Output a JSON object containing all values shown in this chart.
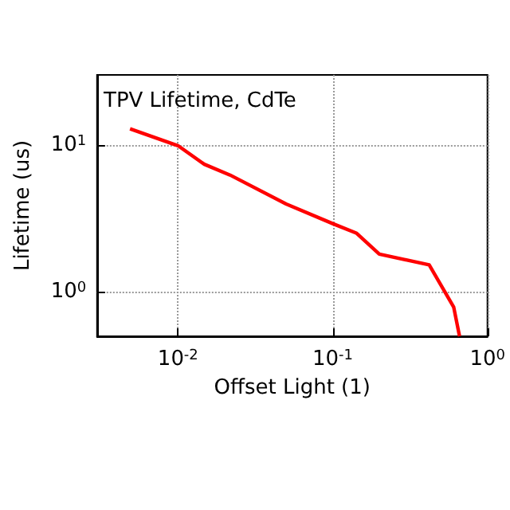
{
  "chart_data": {
    "type": "line",
    "title": "TPV Lifetime, CdTe",
    "xlabel": "Offset Light (1)",
    "ylabel": "Lifetime (us)",
    "x": [
      0.0049,
      0.01,
      0.0148,
      0.0217,
      0.05,
      0.1,
      0.142,
      0.2,
      0.42,
      0.605,
      0.66
    ],
    "series": [
      {
        "color": "#ff0000",
        "values": [
          12.9,
          9.9,
          7.4,
          6.25,
          3.97,
          2.92,
          2.52,
          1.81,
          1.53,
          0.79,
          0.5
        ]
      }
    ],
    "log": "xy",
    "xlim": [
      0.003,
      1
    ],
    "ylim": [
      0.5,
      30
    ],
    "xticks": [
      {
        "value": 0.01,
        "label": "10$^{-2}$"
      },
      {
        "value": 0.1,
        "label": "10$^{-1}$"
      },
      {
        "value": 1,
        "label": "10$^{0}$"
      }
    ],
    "yticks": [
      {
        "value": 1,
        "label": "10$^{0}$"
      },
      {
        "value": 10,
        "label": "10$^{1}$"
      }
    ],
    "grid": true,
    "marker": "none",
    "line_style": "solid"
  }
}
